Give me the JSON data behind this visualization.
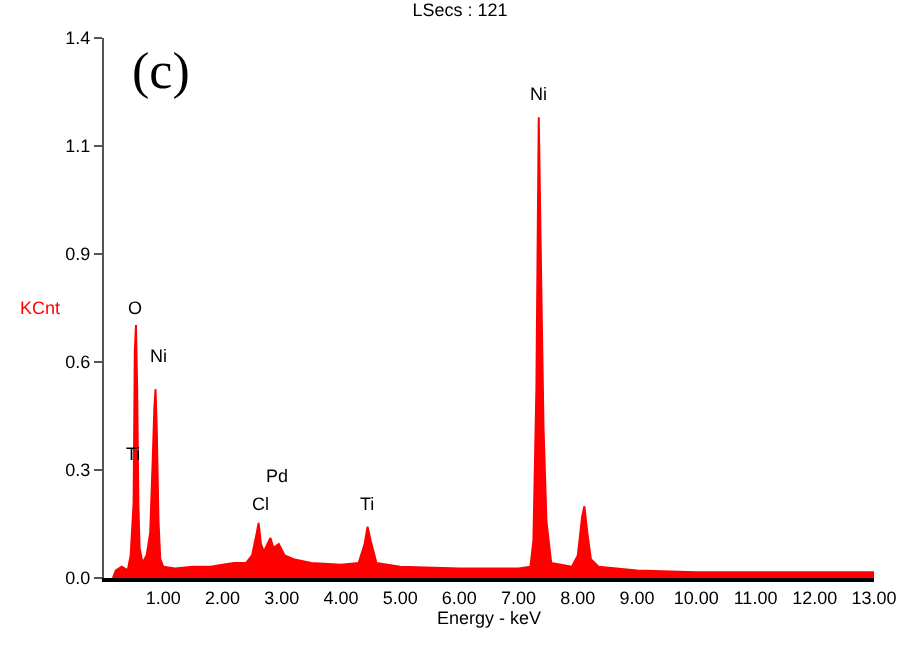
{
  "chart_data": {
    "type": "area",
    "title": "LSecs : 121",
    "xlabel": "Energy - keV",
    "ylabel": "KCnt",
    "annotations": [
      "(c)",
      {
        "text": "O",
        "x": 0.54,
        "y": 0.67
      },
      {
        "text": "Ti",
        "x": 0.5,
        "y": 0.2
      },
      {
        "text": "Ni",
        "x": 0.87,
        "y": 0.5
      },
      {
        "text": "Pd",
        "x": 2.81,
        "y": 0.106
      },
      {
        "text": "Cl",
        "x": 2.61,
        "y": 0.146
      },
      {
        "text": "Ti",
        "x": 4.45,
        "y": 0.136
      },
      {
        "text": "Ni",
        "x": 7.34,
        "y": 1.22
      }
    ],
    "x": [
      0.15,
      0.2,
      0.3,
      0.4,
      0.45,
      0.5,
      0.52,
      0.54,
      0.56,
      0.58,
      0.6,
      0.65,
      0.72,
      0.78,
      0.82,
      0.85,
      0.87,
      0.89,
      0.92,
      0.95,
      1.0,
      1.2,
      1.5,
      1.8,
      2.0,
      2.2,
      2.4,
      2.5,
      2.58,
      2.61,
      2.65,
      2.7,
      2.76,
      2.81,
      2.86,
      2.95,
      3.05,
      3.2,
      3.5,
      4.0,
      4.3,
      4.4,
      4.45,
      4.5,
      4.6,
      5.0,
      6.0,
      7.0,
      7.2,
      7.25,
      7.3,
      7.34,
      7.38,
      7.42,
      7.47,
      7.55,
      7.9,
      8.0,
      8.07,
      8.11,
      8.16,
      8.22,
      8.35,
      9.0,
      10.0,
      11.0,
      12.0,
      13.0
    ],
    "series": [
      {
        "color": "#ff0000",
        "values": [
          0,
          0.02,
          0.03,
          0.02,
          0.06,
          0.2,
          0.6,
          0.67,
          0.5,
          0.2,
          0.08,
          0.04,
          0.06,
          0.12,
          0.3,
          0.45,
          0.5,
          0.4,
          0.15,
          0.05,
          0.03,
          0.025,
          0.03,
          0.03,
          0.035,
          0.04,
          0.04,
          0.06,
          0.12,
          0.146,
          0.09,
          0.07,
          0.09,
          0.106,
          0.08,
          0.09,
          0.06,
          0.05,
          0.04,
          0.035,
          0.04,
          0.09,
          0.136,
          0.1,
          0.04,
          0.03,
          0.025,
          0.025,
          0.03,
          0.1,
          0.5,
          1.22,
          0.8,
          0.4,
          0.15,
          0.04,
          0.03,
          0.06,
          0.16,
          0.19,
          0.12,
          0.05,
          0.03,
          0.02,
          0.015,
          0.015,
          0.015,
          0.015
        ]
      }
    ],
    "xlim": [
      0,
      13
    ],
    "xticks": [
      {
        "value": 1,
        "label": "1.00"
      },
      {
        "value": 2,
        "label": "2.00"
      },
      {
        "value": 3,
        "label": "3.00"
      },
      {
        "value": 4,
        "label": "4.00"
      },
      {
        "value": 5,
        "label": "5.00"
      },
      {
        "value": 6,
        "label": "6.00"
      },
      {
        "value": 7,
        "label": "7.00"
      },
      {
        "value": 8,
        "label": "8.00"
      },
      {
        "value": 9,
        "label": "9.00"
      },
      {
        "value": 10,
        "label": "10.00"
      },
      {
        "value": 11,
        "label": "11.00"
      },
      {
        "value": 12,
        "label": "12.00"
      },
      {
        "value": 13,
        "label": "13.00"
      }
    ],
    "ylim": [
      0,
      1.43
    ],
    "yticks": [
      {
        "value": 0,
        "label": "0.0"
      },
      {
        "value": 0.286,
        "label": "0.3"
      },
      {
        "value": 0.572,
        "label": "0.6"
      },
      {
        "value": 0.858,
        "label": "0.9"
      },
      {
        "value": 1.144,
        "label": "1.1"
      },
      {
        "value": 1.43,
        "label": "1.4"
      }
    ]
  }
}
